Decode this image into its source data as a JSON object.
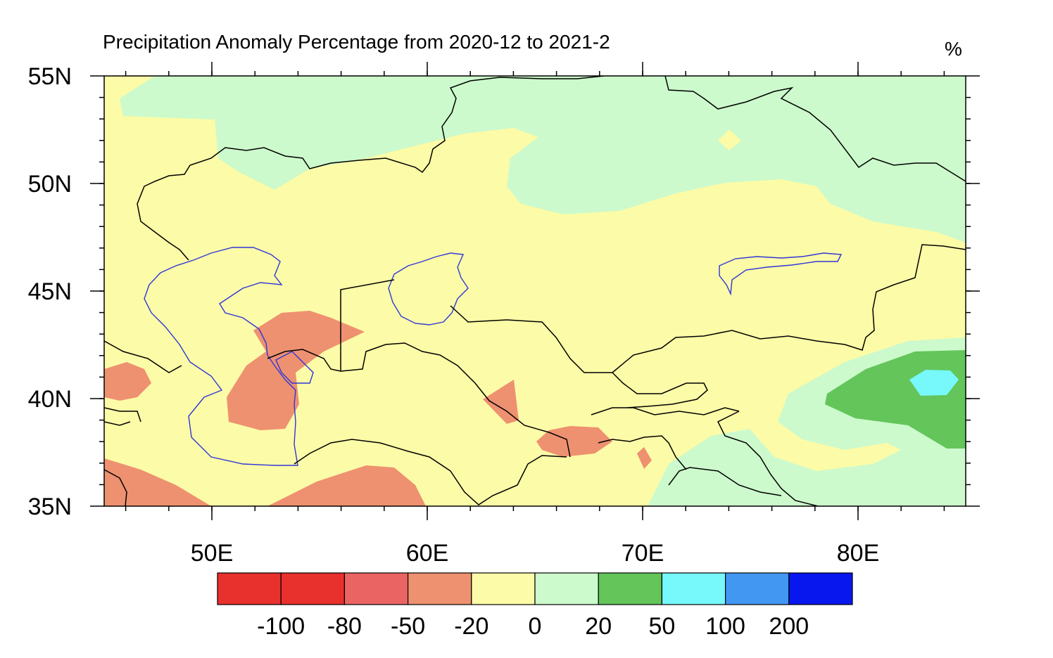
{
  "title": "Precipitation Anomaly Percentage from 2020-12 to 2021-2",
  "units": "%",
  "map": {
    "lon_range": [
      45,
      85
    ],
    "lat_range": [
      35,
      55
    ],
    "lat_ticks": [
      {
        "value": 55,
        "label": "55N"
      },
      {
        "value": 50,
        "label": "50N"
      },
      {
        "value": 45,
        "label": "45N"
      },
      {
        "value": 40,
        "label": "40N"
      },
      {
        "value": 35,
        "label": "35N"
      }
    ],
    "lon_ticks": [
      {
        "value": 50,
        "label": "50E"
      },
      {
        "value": 60,
        "label": "60E"
      },
      {
        "value": 70,
        "label": "70E"
      },
      {
        "value": 80,
        "label": "80E"
      }
    ],
    "ocean_color": "#ffffff",
    "border_color": "#000000",
    "water_color": "#2f36d9"
  },
  "legend": {
    "colors": [
      "#e8302d",
      "#e8302d",
      "#ea6464",
      "#ee9170",
      "#fcfba7",
      "#ccfacc",
      "#63c55a",
      "#77f8fb",
      "#4197f2",
      "#0817ee"
    ],
    "labels": [
      "-100",
      "-80",
      "-50",
      "-20",
      "0",
      "20",
      "50",
      "100",
      "200"
    ]
  }
}
